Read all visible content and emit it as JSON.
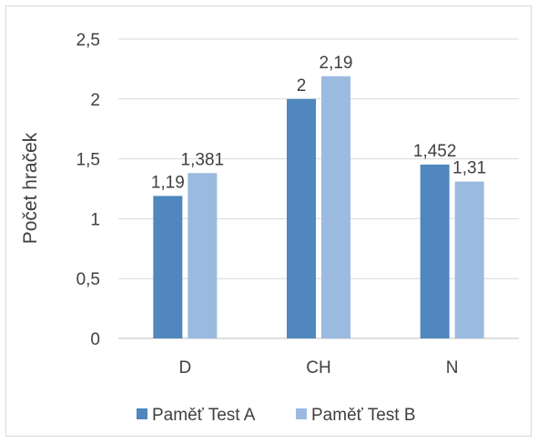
{
  "chart_data": {
    "type": "bar",
    "title": "",
    "xlabel": "",
    "ylabel": "Počet hraček",
    "ylim": [
      0,
      2.5
    ],
    "yticks": [
      "0",
      "0,5",
      "1",
      "1,5",
      "2",
      "2,5"
    ],
    "ytick_values": [
      0,
      0.5,
      1,
      1.5,
      2,
      2.5
    ],
    "categories": [
      "D",
      "CH",
      "N"
    ],
    "grid": true,
    "legend_position": "bottom",
    "series": [
      {
        "name": "Paměť Test A",
        "color": "#4f87be",
        "values": [
          1.19,
          2,
          1.452
        ],
        "labels": [
          "1,19",
          "2",
          "1,452"
        ]
      },
      {
        "name": "Paměť Test B",
        "color": "#9bbae0",
        "values": [
          1.381,
          2.19,
          1.31
        ],
        "labels": [
          "1,381",
          "2,19",
          "1,31"
        ]
      }
    ]
  }
}
